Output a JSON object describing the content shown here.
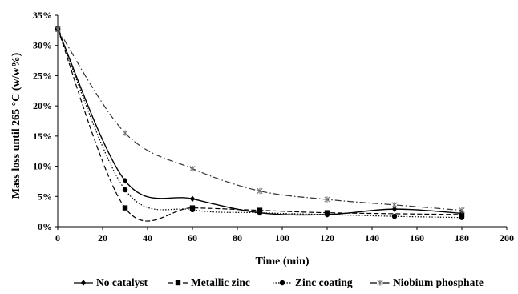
{
  "chart_data": {
    "type": "line",
    "title": "",
    "xlabel": "Time (min)",
    "ylabel": "Mass loss until 265 °C (w/w%)",
    "xlim": [
      0,
      200
    ],
    "ylim": [
      0,
      35
    ],
    "x_ticks": [
      "0",
      "20",
      "40",
      "60",
      "80",
      "100",
      "120",
      "140",
      "160",
      "180",
      "200"
    ],
    "y_ticks": [
      "0%",
      "5%",
      "10%",
      "15%",
      "20%",
      "25%",
      "30%",
      "35%"
    ],
    "grid": false,
    "legend_position": "bottom",
    "series": [
      {
        "name": "No catalyst",
        "marker": "diamond",
        "dash": "solid",
        "x": [
          0,
          30,
          60,
          90,
          120,
          150,
          180
        ],
        "y": [
          32.7,
          7.6,
          4.6,
          2.3,
          2.0,
          2.9,
          2.2
        ]
      },
      {
        "name": "Metallic zinc",
        "marker": "square",
        "dash": "dashed",
        "x": [
          0,
          30,
          60,
          90,
          120,
          150,
          180
        ],
        "y": [
          32.7,
          3.1,
          3.1,
          2.7,
          2.3,
          null,
          2.0
        ]
      },
      {
        "name": "Zinc coating",
        "marker": "circle",
        "dash": "dotted",
        "x": [
          0,
          30,
          60,
          90,
          120,
          150,
          180
        ],
        "y": [
          32.7,
          6.1,
          2.8,
          2.3,
          2.0,
          1.7,
          1.5
        ]
      },
      {
        "name": "Niobium phosphate",
        "marker": "star",
        "dash": "dash-dot",
        "x": [
          0,
          30,
          60,
          90,
          120,
          150,
          180
        ],
        "y": [
          32.7,
          15.5,
          9.6,
          5.9,
          4.5,
          3.6,
          2.7
        ]
      }
    ]
  }
}
